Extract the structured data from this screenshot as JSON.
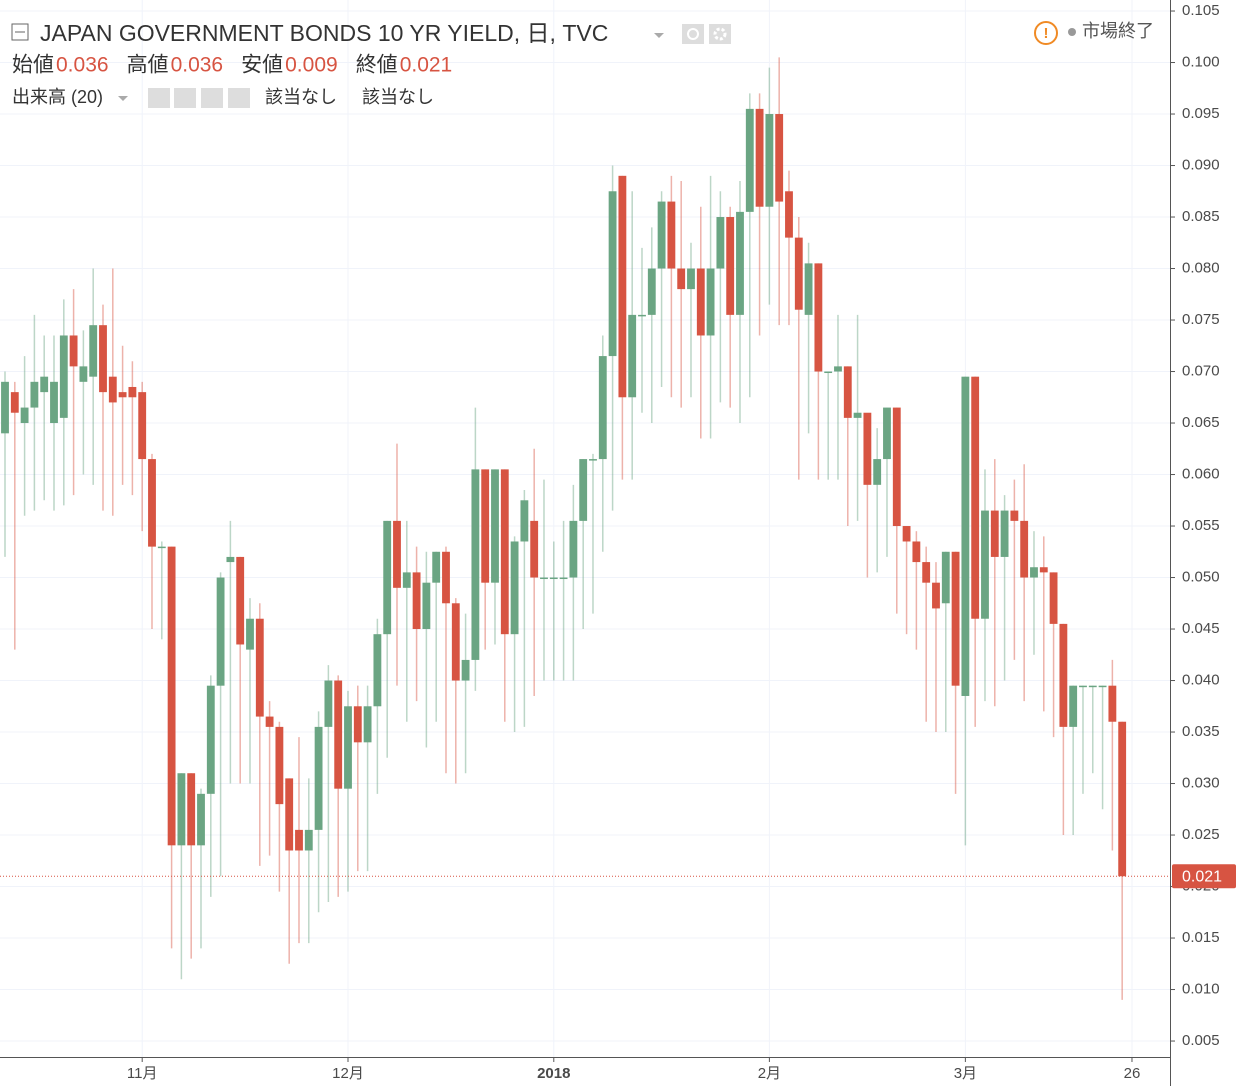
{
  "chart_data": {
    "type": "candlestick",
    "title": "JAPAN GOVERNMENT BONDS 10 YR YIELD, 日, TVC",
    "status": "市場終了",
    "legend_ohlc": [
      {
        "label": "始値",
        "value": 0.036
      },
      {
        "label": "高値",
        "value": 0.036
      },
      {
        "label": "安値",
        "value": 0.009
      },
      {
        "label": "終値",
        "value": 0.021
      }
    ],
    "indicator": {
      "label": "出来高 (20)",
      "values": [
        "該当なし",
        "該当なし"
      ]
    },
    "last_price": 0.021,
    "up_color": "#6ba583",
    "down_color": "#d75442",
    "grid": true,
    "xlim": [
      -0.51,
      118.88
    ],
    "xticks": [
      {
        "value": 14,
        "label": "11月"
      },
      {
        "value": 35,
        "label": "12月"
      },
      {
        "value": 56,
        "label": "2018"
      },
      {
        "value": 78,
        "label": "2月"
      },
      {
        "value": 98,
        "label": "3月"
      },
      {
        "value": 115,
        "label": "26"
      }
    ],
    "ylim": [
      0.00345,
      0.10607
    ],
    "yticks": [
      0.005,
      {
        "value": 0.01,
        "label": "0.010"
      },
      0.015,
      {
        "value": 0.02,
        "label": "0.020"
      },
      0.025,
      {
        "value": 0.03,
        "label": "0.030"
      },
      0.035,
      {
        "value": 0.04,
        "label": "0.040"
      },
      0.045,
      {
        "value": 0.05,
        "label": "0.050"
      },
      0.055,
      {
        "value": 0.06,
        "label": "0.060"
      },
      0.065,
      {
        "value": 0.07,
        "label": "0.070"
      },
      0.075,
      {
        "value": 0.08,
        "label": "0.080"
      },
      0.085,
      {
        "value": 0.09,
        "label": "0.090"
      },
      0.095,
      {
        "value": 0.1,
        "label": "0.100"
      },
      0.105
    ],
    "open": [
      0.064,
      0.068,
      0.065,
      0.0665,
      0.068,
      0.065,
      0.0655,
      0.0735,
      0.069,
      0.0695,
      0.0745,
      0.0695,
      0.068,
      0.0685,
      0.068,
      0.0615,
      0.053,
      0.053,
      0.024,
      0.031,
      0.024,
      0.029,
      0.0395,
      0.0515,
      0.052,
      0.043,
      0.046,
      0.0365,
      0.0355,
      0.0305,
      0.0255,
      0.0235,
      0.0255,
      0.0355,
      0.04,
      0.0295,
      0.0375,
      0.034,
      0.0375,
      0.0445,
      0.0555,
      0.049,
      0.0505,
      0.045,
      0.0495,
      0.0525,
      0.0475,
      0.04,
      0.042,
      0.0605,
      0.0495,
      0.0605,
      0.0445,
      0.0535,
      0.0555,
      0.05,
      0.05,
      0.05,
      0.05,
      0.0555,
      0.0615,
      0.0615,
      0.0715,
      0.089,
      0.0675,
      0.0755,
      0.0755,
      0.08,
      0.0865,
      0.08,
      0.078,
      0.08,
      0.0735,
      0.08,
      0.085,
      0.0755,
      0.0855,
      0.0955,
      0.086,
      0.095,
      0.0875,
      0.083,
      0.0755,
      0.0805,
      0.07,
      0.07,
      0.0705,
      0.0655,
      0.066,
      0.059,
      0.0615,
      0.0665,
      0.055,
      0.0535,
      0.0515,
      0.0495,
      0.0475,
      0.0525,
      0.0385,
      0.0695,
      0.046,
      0.0565,
      0.052,
      0.0565,
      0.0555,
      0.05,
      0.051,
      0.0505,
      0.0455,
      0.0355,
      0.0395,
      0.0395,
      0.0395,
      0.0395,
      0.036
    ],
    "high": [
      0.07,
      0.069,
      0.0715,
      0.0755,
      0.0735,
      0.0735,
      0.077,
      0.078,
      0.074,
      0.08,
      0.0765,
      0.08,
      0.0725,
      0.071,
      0.069,
      0.062,
      0.0535,
      0.053,
      0.031,
      0.031,
      0.0295,
      0.0405,
      0.0505,
      0.0555,
      0.052,
      0.048,
      0.0475,
      0.038,
      0.036,
      0.0305,
      0.0345,
      0.0305,
      0.037,
      0.0415,
      0.0405,
      0.039,
      0.0395,
      0.0395,
      0.046,
      0.0555,
      0.063,
      0.0555,
      0.053,
      0.0525,
      0.0525,
      0.053,
      0.048,
      0.0465,
      0.0665,
      0.0605,
      0.0605,
      0.0605,
      0.054,
      0.0585,
      0.0625,
      0.0595,
      0.0535,
      0.0555,
      0.059,
      0.0615,
      0.062,
      0.0735,
      0.09,
      0.089,
      0.0875,
      0.082,
      0.084,
      0.0875,
      0.089,
      0.0885,
      0.0825,
      0.086,
      0.089,
      0.0875,
      0.086,
      0.0885,
      0.097,
      0.097,
      0.0995,
      0.1005,
      0.0895,
      0.085,
      0.0825,
      0.0805,
      0.07,
      0.0755,
      0.0705,
      0.0755,
      0.0655,
      0.0645,
      0.0665,
      0.0665,
      0.0545,
      0.0545,
      0.053,
      0.0515,
      0.0525,
      0.0525,
      0.0695,
      0.0695,
      0.0605,
      0.0615,
      0.058,
      0.0595,
      0.061,
      0.0545,
      0.054,
      0.0505,
      0.0455,
      0.0395,
      0.0395,
      0.0395,
      0.0395,
      0.042,
      0.036
    ],
    "low": [
      0.052,
      0.043,
      0.056,
      0.0565,
      0.0575,
      0.0565,
      0.057,
      0.058,
      0.06,
      0.059,
      0.0565,
      0.056,
      0.059,
      0.058,
      0.0545,
      0.045,
      0.044,
      0.014,
      0.011,
      0.013,
      0.014,
      0.019,
      0.021,
      0.03,
      0.03,
      0.03,
      0.022,
      0.023,
      0.0195,
      0.0125,
      0.0145,
      0.0145,
      0.0175,
      0.0185,
      0.019,
      0.0195,
      0.0215,
      0.0215,
      0.029,
      0.0325,
      0.0395,
      0.036,
      0.038,
      0.0335,
      0.036,
      0.031,
      0.03,
      0.031,
      0.039,
      0.043,
      0.0435,
      0.036,
      0.035,
      0.0355,
      0.0385,
      0.04,
      0.04,
      0.04,
      0.04,
      0.045,
      0.0465,
      0.0525,
      0.0565,
      0.0595,
      0.0595,
      0.066,
      0.065,
      0.0685,
      0.0675,
      0.0665,
      0.0675,
      0.0635,
      0.0635,
      0.067,
      0.0665,
      0.065,
      0.0675,
      0.0735,
      0.0765,
      0.0745,
      0.0745,
      0.0595,
      0.064,
      0.0595,
      0.0595,
      0.0595,
      0.055,
      0.0555,
      0.05,
      0.0505,
      0.052,
      0.0465,
      0.0445,
      0.043,
      0.036,
      0.035,
      0.035,
      0.029,
      0.024,
      0.0355,
      0.038,
      0.0375,
      0.04,
      0.042,
      0.038,
      0.0425,
      0.037,
      0.0345,
      0.025,
      0.025,
      0.029,
      0.031,
      0.0275,
      0.0235,
      0.009
    ],
    "close": [
      0.069,
      0.066,
      0.0665,
      0.069,
      0.0695,
      0.069,
      0.0735,
      0.0705,
      0.0705,
      0.0745,
      0.068,
      0.067,
      0.0675,
      0.0675,
      0.0615,
      0.053,
      0.053,
      0.024,
      0.031,
      0.024,
      0.029,
      0.0395,
      0.05,
      0.052,
      0.0435,
      0.046,
      0.0365,
      0.0355,
      0.028,
      0.0235,
      0.0235,
      0.0255,
      0.0355,
      0.04,
      0.0295,
      0.0375,
      0.034,
      0.0375,
      0.0445,
      0.0555,
      0.049,
      0.0505,
      0.045,
      0.0495,
      0.0525,
      0.0475,
      0.04,
      0.042,
      0.0605,
      0.0495,
      0.0605,
      0.0445,
      0.0535,
      0.0575,
      0.05,
      0.05,
      0.05,
      0.05,
      0.0555,
      0.0615,
      0.0615,
      0.0715,
      0.0875,
      0.0675,
      0.0755,
      0.0755,
      0.08,
      0.0865,
      0.08,
      0.078,
      0.08,
      0.0735,
      0.08,
      0.085,
      0.0755,
      0.0855,
      0.0955,
      0.086,
      0.095,
      0.0865,
      0.083,
      0.076,
      0.0805,
      0.07,
      0.07,
      0.0705,
      0.0655,
      0.066,
      0.059,
      0.0615,
      0.0665,
      0.055,
      0.0535,
      0.0515,
      0.0495,
      0.047,
      0.0525,
      0.0395,
      0.0695,
      0.046,
      0.0565,
      0.052,
      0.0565,
      0.0555,
      0.05,
      0.051,
      0.0505,
      0.0455,
      0.0355,
      0.0395,
      0.0395,
      0.0395,
      0.0395,
      0.036,
      0.021
    ]
  }
}
